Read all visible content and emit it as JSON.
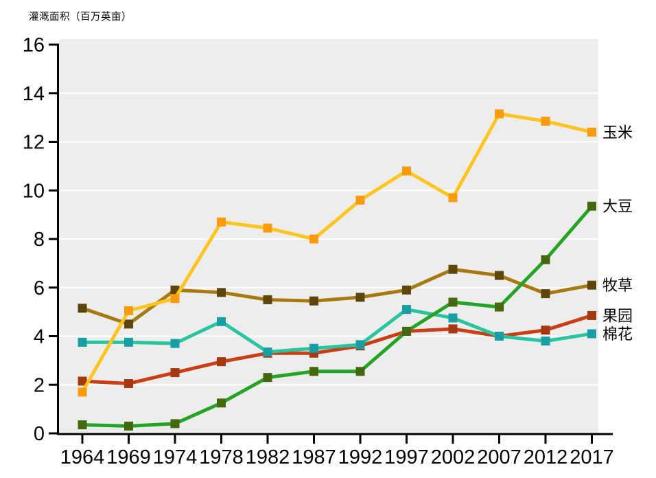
{
  "header": {
    "y_axis_title": "灌溉面积（百万英亩）"
  },
  "chart_data": {
    "type": "line",
    "title": "",
    "ylabel": "灌溉面积（百万英亩）",
    "xlabel": "",
    "categories": [
      "1964",
      "1969",
      "1974",
      "1978",
      "1982",
      "1987",
      "1992",
      "1997",
      "2002",
      "2007",
      "2012",
      "2017"
    ],
    "ylim": [
      0,
      16
    ],
    "yticks": [
      0,
      2,
      4,
      6,
      8,
      10,
      12,
      14,
      16
    ],
    "grid": "horizontal white gridlines on light-gray plot background",
    "legend_position": "right of last data point, text only",
    "plot_bg_color": "#EDEDED",
    "grid_color": "#FFFFFF",
    "axis_color": "#000000",
    "series": [
      {
        "id": "corn",
        "name": "玉米",
        "line_color": "#FFC41E",
        "marker_color": "#F99B0B",
        "values": [
          1.7,
          5.05,
          5.55,
          8.7,
          8.45,
          8.0,
          9.6,
          10.8,
          9.7,
          13.15,
          12.85,
          12.4
        ]
      },
      {
        "id": "soybean",
        "name": "大豆",
        "line_color": "#25A325",
        "marker_color": "#45670E",
        "values": [
          0.35,
          0.3,
          0.4,
          1.25,
          2.3,
          2.55,
          2.55,
          4.2,
          5.4,
          5.2,
          7.15,
          9.35
        ]
      },
      {
        "id": "pasture",
        "name": "牧草",
        "line_color": "#A87911",
        "marker_color": "#5C460B",
        "values": [
          5.15,
          4.5,
          5.9,
          5.8,
          5.5,
          5.45,
          5.6,
          5.9,
          6.75,
          6.5,
          5.75,
          6.1
        ]
      },
      {
        "id": "orchard",
        "name": "果园",
        "line_color": "#CB3D13",
        "marker_color": "#A4390F",
        "values": [
          2.15,
          2.05,
          2.5,
          2.95,
          3.3,
          3.3,
          3.6,
          4.2,
          4.3,
          4.0,
          4.25,
          4.85
        ]
      },
      {
        "id": "cotton",
        "name": "棉花",
        "line_color": "#28C5A0",
        "marker_color": "#199EA4",
        "values": [
          3.75,
          3.75,
          3.7,
          4.6,
          3.35,
          3.5,
          3.65,
          5.1,
          4.75,
          4.0,
          3.8,
          4.1
        ]
      }
    ],
    "draw_order": [
      "pasture",
      "orchard",
      "cotton",
      "corn",
      "soybean"
    ]
  }
}
